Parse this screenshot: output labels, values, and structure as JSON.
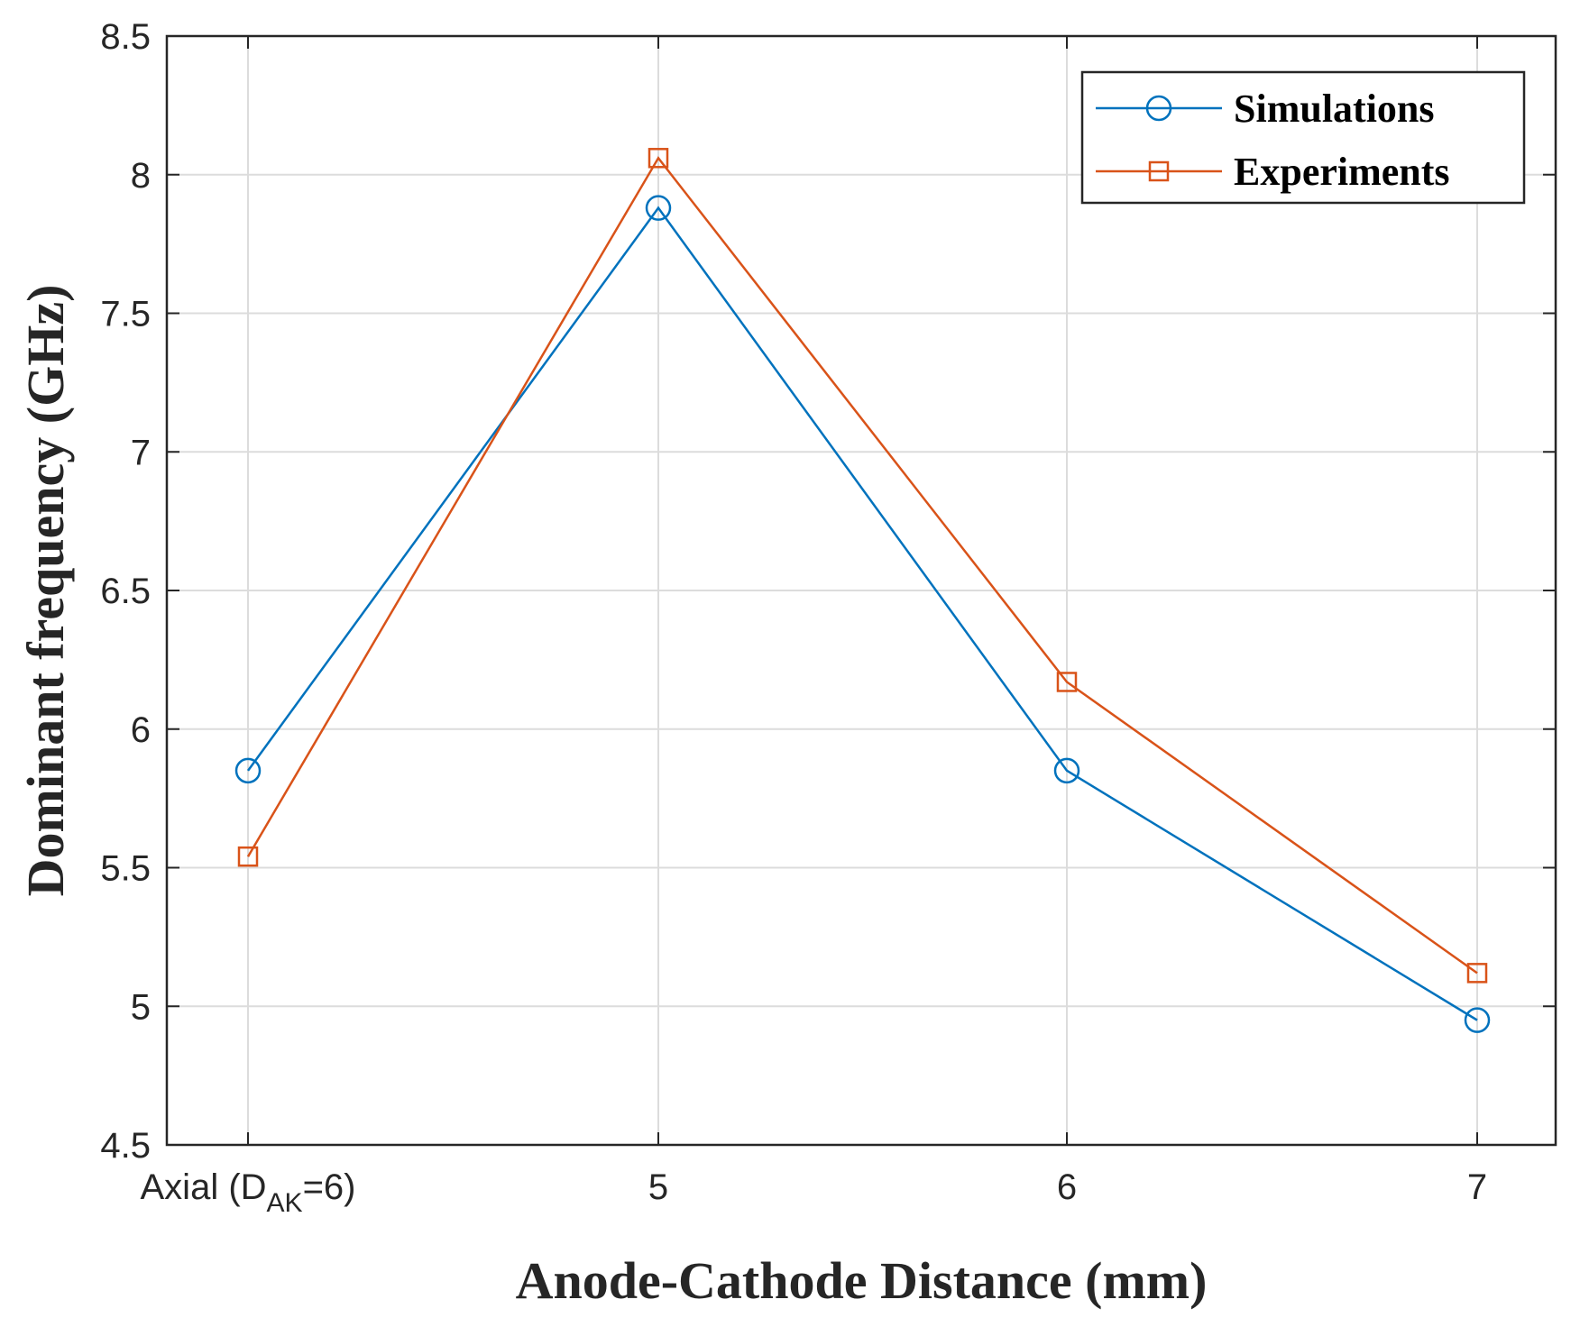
{
  "chart_data": {
    "type": "line",
    "title": "",
    "xlabel": "Anode-Cathode Distance (mm)",
    "ylabel": "Dominant frequency (GHz)",
    "categories": [
      {
        "main": "Axial (D",
        "sub": "AK",
        "tail": "=6)"
      },
      {
        "main": "5",
        "sub": "",
        "tail": ""
      },
      {
        "main": "6",
        "sub": "",
        "tail": ""
      },
      {
        "main": "7",
        "sub": "",
        "tail": ""
      }
    ],
    "ylim": [
      4.5,
      8.5
    ],
    "yticks": [
      "4.5",
      "5",
      "5.5",
      "6",
      "6.5",
      "7",
      "7.5",
      "8",
      "8.5"
    ],
    "grid": true,
    "legend_position": "top-right",
    "series": [
      {
        "name": "Simulations",
        "marker": "circle",
        "color": "#0072BD",
        "values": [
          5.85,
          7.88,
          5.85,
          4.95
        ]
      },
      {
        "name": "Experiments",
        "marker": "square",
        "color": "#D95319",
        "values": [
          5.54,
          8.06,
          6.17,
          5.12
        ]
      }
    ]
  }
}
